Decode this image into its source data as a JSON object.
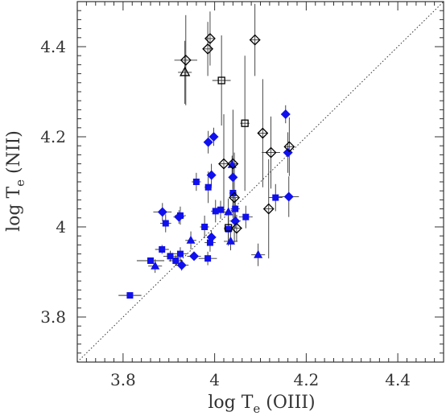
{
  "chart_data": {
    "type": "scatter",
    "xlabel": {
      "main": "log T",
      "sub": "e",
      "suffix": " (OIII)"
    },
    "ylabel": {
      "main": "log T",
      "sub": "e",
      "suffix": " (NII)"
    },
    "xlim": [
      3.7,
      4.5
    ],
    "ylim": [
      3.7,
      4.5
    ],
    "xticks": [
      {
        "value": 3.8,
        "label": "3.8"
      },
      {
        "value": 4.0,
        "label": "4"
      },
      {
        "value": 4.2,
        "label": "4.2"
      },
      {
        "value": 4.4,
        "label": "4.4"
      }
    ],
    "yticks": [
      {
        "value": 3.8,
        "label": "3.8"
      },
      {
        "value": 4.0,
        "label": "4"
      },
      {
        "value": 4.2,
        "label": "4.2"
      },
      {
        "value": 4.4,
        "label": "4.4"
      }
    ],
    "reference_line": {
      "style": "dotted",
      "relation": "y = x"
    },
    "colors": {
      "filled": "#1010ee",
      "open": "#000000",
      "errorbar": "#333333",
      "axis": "#333333"
    },
    "series": [
      {
        "marker": "filled-square",
        "points": [
          {
            "x": 3.815,
            "y": 3.848,
            "xerr": 0.025,
            "yerr": 0.005
          },
          {
            "x": 3.86,
            "y": 3.925,
            "xerr": 0.03,
            "yerr": 0.005
          },
          {
            "x": 3.885,
            "y": 3.95,
            "xerr": 0.015,
            "yerr": 0.01
          },
          {
            "x": 3.893,
            "y": 4.008,
            "xerr": 0.012,
            "yerr": 0.02
          },
          {
            "x": 3.903,
            "y": 3.935,
            "xerr": 0.015,
            "yerr": 0.012
          },
          {
            "x": 3.915,
            "y": 3.925,
            "xerr": 0.015,
            "yerr": 0.012
          },
          {
            "x": 3.925,
            "y": 3.94,
            "xerr": 0.015,
            "yerr": 0.015
          },
          {
            "x": 3.925,
            "y": 4.025,
            "xerr": 0.012,
            "yerr": 0.02
          },
          {
            "x": 3.96,
            "y": 4.1,
            "xerr": 0.01,
            "yerr": 0.02
          },
          {
            "x": 3.978,
            "y": 4.0,
            "xerr": 0.01,
            "yerr": 0.025
          },
          {
            "x": 3.985,
            "y": 3.93,
            "xerr": 0.02,
            "yerr": 0.015
          },
          {
            "x": 3.986,
            "y": 4.088,
            "xerr": 0.008,
            "yerr": 0.035
          },
          {
            "x": 3.99,
            "y": 3.965,
            "xerr": 0.012,
            "yerr": 0.02
          },
          {
            "x": 4.002,
            "y": 4.035,
            "xerr": 0.01,
            "yerr": 0.025
          },
          {
            "x": 4.013,
            "y": 4.038,
            "xerr": 0.01,
            "yerr": 0.02
          },
          {
            "x": 4.03,
            "y": 3.995,
            "xerr": 0.01,
            "yerr": 0.025
          },
          {
            "x": 4.04,
            "y": 4.075,
            "xerr": 0.008,
            "yerr": 0.03
          },
          {
            "x": 4.045,
            "y": 4.04,
            "xerr": 0.01,
            "yerr": 0.025
          },
          {
            "x": 4.068,
            "y": 4.022,
            "xerr": 0.015,
            "yerr": 0.025
          },
          {
            "x": 4.133,
            "y": 4.065,
            "xerr": 0.015,
            "yerr": 0.03
          }
        ]
      },
      {
        "marker": "filled-diamond",
        "points": [
          {
            "x": 3.886,
            "y": 4.033,
            "xerr": 0.02,
            "yerr": 0.02
          },
          {
            "x": 3.922,
            "y": 4.022,
            "xerr": 0.012,
            "yerr": 0.015
          },
          {
            "x": 3.928,
            "y": 3.915,
            "xerr": 0.015,
            "yerr": 0.012
          },
          {
            "x": 3.955,
            "y": 3.935,
            "xerr": 0.015,
            "yerr": 0.01
          },
          {
            "x": 3.986,
            "y": 4.188,
            "xerr": 0.01,
            "yerr": 0.025
          },
          {
            "x": 3.993,
            "y": 4.115,
            "xerr": 0.008,
            "yerr": 0.025
          },
          {
            "x": 3.993,
            "y": 3.977,
            "xerr": 0.01,
            "yerr": 0.015
          },
          {
            "x": 3.998,
            "y": 4.2,
            "xerr": 0.01,
            "yerr": 0.02
          },
          {
            "x": 4.04,
            "y": 4.11,
            "xerr": 0.008,
            "yerr": 0.025
          },
          {
            "x": 4.045,
            "y": 4.013,
            "xerr": 0.012,
            "yerr": 0.015
          },
          {
            "x": 4.155,
            "y": 4.25,
            "xerr": 0.01,
            "yerr": 0.02
          },
          {
            "x": 4.16,
            "y": 4.165,
            "xerr": 0.01,
            "yerr": 0.045
          },
          {
            "x": 4.162,
            "y": 4.067,
            "xerr": 0.022,
            "yerr": 0.045
          }
        ]
      },
      {
        "marker": "filled-triangle",
        "points": [
          {
            "x": 3.87,
            "y": 3.913,
            "xerr": 0.015,
            "yerr": 0.015
          },
          {
            "x": 3.948,
            "y": 3.97,
            "xerr": 0.012,
            "yerr": 0.02
          },
          {
            "x": 4.03,
            "y": 4.033,
            "xerr": 0.01,
            "yerr": 0.03
          },
          {
            "x": 4.035,
            "y": 3.968,
            "xerr": 0.015,
            "yerr": 0.02
          },
          {
            "x": 4.038,
            "y": 4.138,
            "xerr": 0.008,
            "yerr": 0.02
          },
          {
            "x": 4.095,
            "y": 3.938,
            "xerr": 0.015,
            "yerr": 0.025
          }
        ]
      },
      {
        "marker": "open-diamond",
        "points": [
          {
            "x": 3.937,
            "y": 4.37,
            "xerr": 0.025,
            "yerr": 0.1
          },
          {
            "x": 3.985,
            "y": 4.395,
            "xerr": 0.01,
            "yerr": 0.06
          },
          {
            "x": 3.99,
            "y": 4.418,
            "xerr": 0.01,
            "yerr": 0.06
          },
          {
            "x": 4.02,
            "y": 4.14,
            "xerr": 0.01,
            "yerr": 0.11
          },
          {
            "x": 4.04,
            "y": 4.14,
            "xerr": 0.01,
            "yerr": 0.12
          },
          {
            "x": 4.043,
            "y": 4.065,
            "xerr": 0.008,
            "yerr": 0.1
          },
          {
            "x": 4.048,
            "y": 3.997,
            "xerr": 0.012,
            "yerr": 0.03
          },
          {
            "x": 4.088,
            "y": 4.415,
            "xerr": 0.012,
            "yerr": 0.08
          },
          {
            "x": 4.105,
            "y": 4.208,
            "xerr": 0.01,
            "yerr": 0.12
          },
          {
            "x": 4.118,
            "y": 4.04,
            "xerr": 0.01,
            "yerr": 0.11
          },
          {
            "x": 4.123,
            "y": 4.165,
            "xerr": 0.02,
            "yerr": 0.08
          },
          {
            "x": 4.163,
            "y": 4.178,
            "xerr": 0.01,
            "yerr": 0.065
          }
        ]
      },
      {
        "marker": "open-square",
        "points": [
          {
            "x": 4.015,
            "y": 4.325,
            "xerr": 0.02,
            "yerr": 0.1
          },
          {
            "x": 4.03,
            "y": 3.998,
            "xerr": 0.01,
            "yerr": 0.04
          },
          {
            "x": 4.066,
            "y": 4.23,
            "xerr": 0.01,
            "yerr": 0.15
          }
        ]
      },
      {
        "marker": "open-triangle",
        "points": [
          {
            "x": 3.935,
            "y": 4.343,
            "xerr": 0.015,
            "yerr": 0.07
          }
        ]
      }
    ]
  }
}
